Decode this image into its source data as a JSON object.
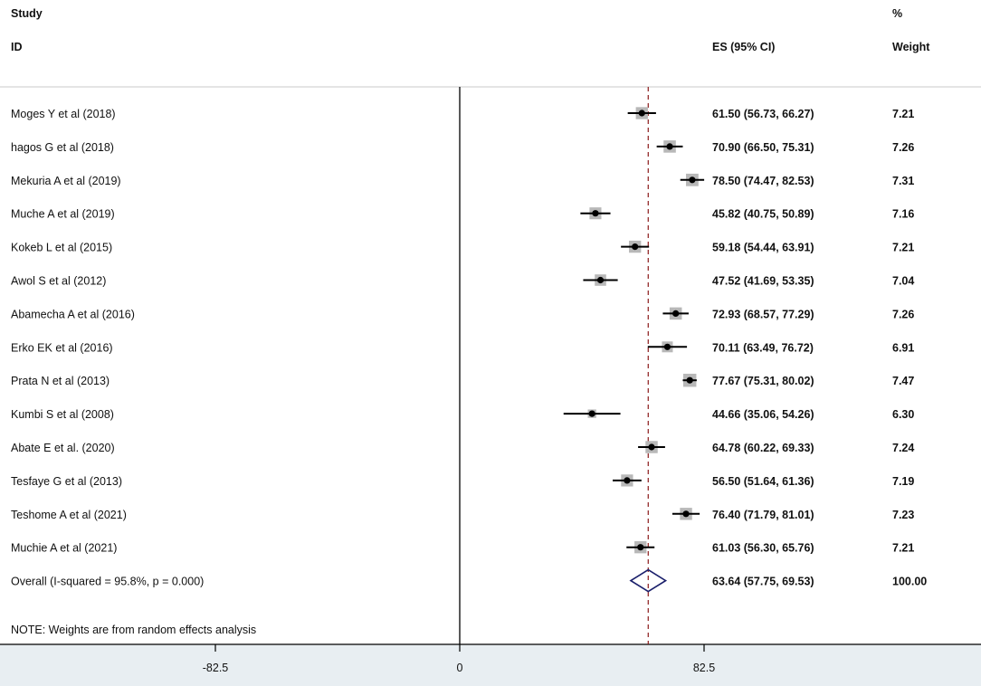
{
  "header": {
    "study": "Study",
    "id": "ID",
    "es": "ES (95% CI)",
    "pct": "%",
    "weight": "Weight"
  },
  "colors": {
    "axis_band": "#e8eef2",
    "ci_line": "#000000",
    "weight_box": "#b8b8b8",
    "null_line": "#000000",
    "overall_line": "#8b1a1a",
    "diamond": "#1a1f6b"
  },
  "chart_data": {
    "type": "forest",
    "x_ticks": [
      -82.5,
      0,
      82.5
    ],
    "x_tick_labels": [
      "-82.5",
      "0",
      "82.5"
    ],
    "xlim": [
      -155,
      115
    ],
    "null_line": 0,
    "overall_line": 63.64,
    "studies": [
      {
        "label": "Moges Y et al (2018)",
        "es": 61.5,
        "lo": 56.73,
        "hi": 66.27,
        "es_text": "61.50 (56.73, 66.27)",
        "weight": 7.21,
        "weight_text": "7.21"
      },
      {
        "label": "hagos G et al (2018)",
        "es": 70.9,
        "lo": 66.5,
        "hi": 75.31,
        "es_text": "70.90 (66.50, 75.31)",
        "weight": 7.26,
        "weight_text": "7.26"
      },
      {
        "label": "Mekuria A et al (2019)",
        "es": 78.5,
        "lo": 74.47,
        "hi": 82.53,
        "es_text": "78.50 (74.47, 82.53)",
        "weight": 7.31,
        "weight_text": "7.31"
      },
      {
        "label": "Muche A et al (2019)",
        "es": 45.82,
        "lo": 40.75,
        "hi": 50.89,
        "es_text": "45.82 (40.75, 50.89)",
        "weight": 7.16,
        "weight_text": "7.16"
      },
      {
        "label": "Kokeb L et al (2015)",
        "es": 59.18,
        "lo": 54.44,
        "hi": 63.91,
        "es_text": "59.18 (54.44, 63.91)",
        "weight": 7.21,
        "weight_text": "7.21"
      },
      {
        "label": "Awol S et al (2012)",
        "es": 47.52,
        "lo": 41.69,
        "hi": 53.35,
        "es_text": "47.52 (41.69, 53.35)",
        "weight": 7.04,
        "weight_text": "7.04"
      },
      {
        "label": "Abamecha A et al (2016)",
        "es": 72.93,
        "lo": 68.57,
        "hi": 77.29,
        "es_text": "72.93 (68.57, 77.29)",
        "weight": 7.26,
        "weight_text": "7.26"
      },
      {
        "label": "Erko EK et al (2016)",
        "es": 70.11,
        "lo": 63.49,
        "hi": 76.72,
        "es_text": "70.11 (63.49, 76.72)",
        "weight": 6.91,
        "weight_text": "6.91"
      },
      {
        "label": "Prata N et al (2013)",
        "es": 77.67,
        "lo": 75.31,
        "hi": 80.02,
        "es_text": "77.67 (75.31, 80.02)",
        "weight": 7.47,
        "weight_text": "7.47"
      },
      {
        "label": "Kumbi S  et al (2008)",
        "es": 44.66,
        "lo": 35.06,
        "hi": 54.26,
        "es_text": "44.66 (35.06, 54.26)",
        "weight": 6.3,
        "weight_text": "6.30"
      },
      {
        "label": "Abate E et al. (2020)",
        "es": 64.78,
        "lo": 60.22,
        "hi": 69.33,
        "es_text": "64.78 (60.22, 69.33)",
        "weight": 7.24,
        "weight_text": "7.24"
      },
      {
        "label": "Tesfaye G et al (2013)",
        "es": 56.5,
        "lo": 51.64,
        "hi": 61.36,
        "es_text": "56.50 (51.64, 61.36)",
        "weight": 7.19,
        "weight_text": "7.19"
      },
      {
        "label": "Teshome A et al (2021)",
        "es": 76.4,
        "lo": 71.79,
        "hi": 81.01,
        "es_text": "76.40 (71.79, 81.01)",
        "weight": 7.23,
        "weight_text": "7.23"
      },
      {
        "label": "Muchie A et al (2021)",
        "es": 61.03,
        "lo": 56.3,
        "hi": 65.76,
        "es_text": "61.03 (56.30, 65.76)",
        "weight": 7.21,
        "weight_text": "7.21"
      }
    ],
    "overall": {
      "label": "Overall  (I-squared = 95.8%, p = 0.000)",
      "es": 63.64,
      "lo": 57.75,
      "hi": 69.53,
      "es_text": "63.64 (57.75, 69.53)",
      "weight_text": "100.00"
    },
    "note": "NOTE: Weights are from random effects analysis"
  }
}
